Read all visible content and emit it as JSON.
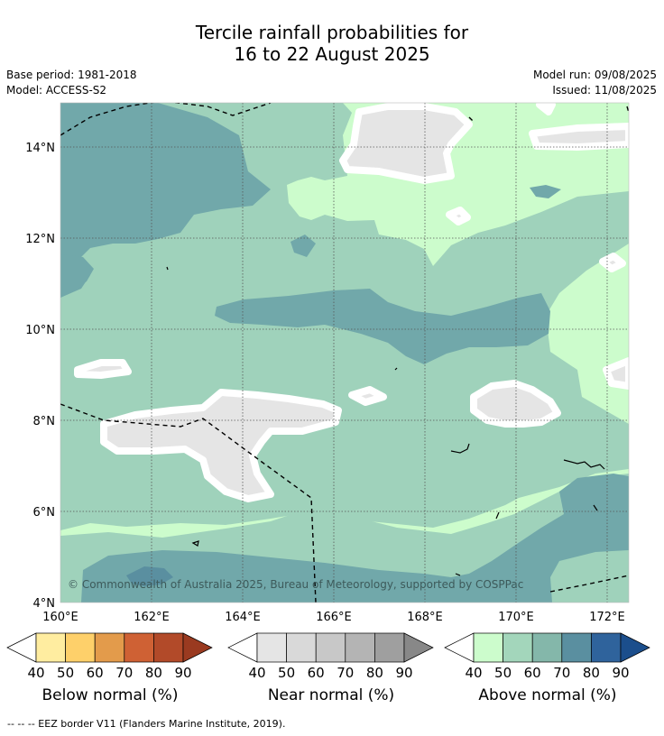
{
  "title_line1": "Tercile rainfall probabilities for",
  "title_line2": "16 to 22 August 2025",
  "base_period": "Base period: 1981-2018",
  "model": "Model: ACCESS-S2",
  "model_run": "Model run: 09/08/2025",
  "issued": "Issued: 11/08/2025",
  "copyright": "© Commonwealth of Australia 2025, Bureau of Meteorology, supported by COSPPac",
  "map": {
    "lat_labels": [
      "14°N",
      "12°N",
      "10°N",
      "8°N",
      "6°N",
      "4°N"
    ],
    "lon_labels": [
      "160°E",
      "162°E",
      "164°E",
      "166°E",
      "168°E",
      "170°E",
      "172°E"
    ],
    "colors": {
      "above_40": "#ccfccc",
      "above_50": "#9fd2bb",
      "above_60": "#71a8aa",
      "near": "#e5e5e5",
      "contour_white": "#ffffff",
      "eez_border": "#000000"
    }
  },
  "colorbars": [
    {
      "label": "Below normal (%)",
      "ticks": [
        "40",
        "50",
        "60",
        "70",
        "80",
        "90"
      ],
      "colors": [
        "#ffffff",
        "#ffeda0",
        "#fed06a",
        "#e39b4b",
        "#cf6134",
        "#b24a29",
        "#9a3a20"
      ]
    },
    {
      "label": "Near normal (%)",
      "ticks": [
        "40",
        "50",
        "60",
        "70",
        "80",
        "90"
      ],
      "colors": [
        "#ffffff",
        "#e5e5e5",
        "#d9d9d9",
        "#c8c8c8",
        "#b4b4b4",
        "#9f9f9f",
        "#888888"
      ]
    },
    {
      "label": "Above normal (%)",
      "ticks": [
        "40",
        "50",
        "60",
        "70",
        "80",
        "90"
      ],
      "colors": [
        "#ffffff",
        "#ccfccc",
        "#a3d6bb",
        "#84b7aa",
        "#5a8fa0",
        "#2f639c",
        "#1b4e8c"
      ]
    }
  ],
  "footnote": "-- -- -- EEZ border V11 (Flanders Marine Institute, 2019)."
}
